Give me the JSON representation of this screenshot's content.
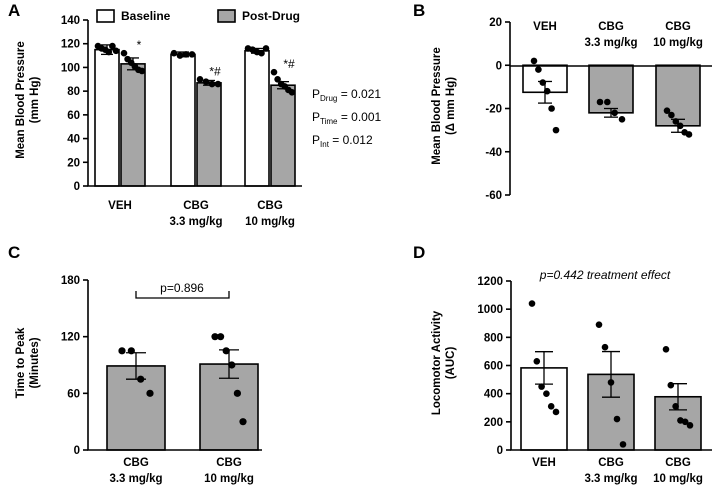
{
  "colors": {
    "baseline": "#ffffff",
    "post_drug": "#a6a6a6",
    "ink": "#000000"
  },
  "chart_data": [
    {
      "panel": "A",
      "type": "bar",
      "ylabel": "Mean Blood Pressure",
      "ylabel_unit": "(mm Hg)",
      "ylim": [
        0,
        140
      ],
      "yticks": [
        "0",
        "20",
        "40",
        "60",
        "80",
        "100",
        "120",
        "140"
      ],
      "legend": {
        "placement": "top",
        "baseline": "Baseline",
        "post_drug": "Post-Drug"
      },
      "groups": [
        {
          "label": "VEH",
          "sublabel": "",
          "baseline_mean": 115,
          "baseline_sem": 4,
          "baseline_points": [
            118,
            116,
            115,
            113,
            118,
            114
          ],
          "post_mean": 103,
          "post_sem": 5,
          "post_points": [
            112,
            107,
            104,
            101,
            98,
            97
          ],
          "marker": "*"
        },
        {
          "label": "CBG",
          "sublabel": "3.3 mg/kg",
          "baseline_mean": 111,
          "baseline_sem": 2,
          "baseline_points": [
            112,
            110,
            111,
            111
          ],
          "post_mean": 87,
          "post_sem": 2,
          "post_points": [
            90,
            88,
            86,
            86
          ],
          "marker": "*#"
        },
        {
          "label": "CBG",
          "sublabel": "10 mg/kg",
          "baseline_mean": 114,
          "baseline_sem": 2,
          "baseline_points": [
            116,
            115,
            113,
            112,
            116
          ],
          "post_mean": 85,
          "post_sem": 3,
          "post_points": [
            96,
            90,
            86,
            84,
            81,
            79
          ],
          "marker": "*#"
        }
      ],
      "stats": [
        {
          "p": "P",
          "sub": "Drug",
          "rest": " = 0.021"
        },
        {
          "p": "P",
          "sub": "Time",
          "rest": " = 0.001"
        },
        {
          "p": "P",
          "sub": "Int",
          "rest": " = 0.012"
        }
      ]
    },
    {
      "panel": "B",
      "type": "bar",
      "ylabel": "Mean Blood Pressure",
      "ylabel_unit": "(Δ mm Hg)",
      "ylim": [
        -60,
        20
      ],
      "yticks": [
        "20",
        "0",
        "-20",
        "-40",
        "-60"
      ],
      "categories": [
        {
          "label": "VEH",
          "sublabel": ""
        },
        {
          "label": "CBG",
          "sublabel": "3.3 mg/kg"
        },
        {
          "label": "CBG",
          "sublabel": "10 mg/kg"
        }
      ],
      "values": [
        -12.5,
        -22,
        -28
      ],
      "sem": [
        5,
        2,
        3
      ],
      "points": [
        [
          2,
          -2,
          -8,
          -12,
          -20,
          -30
        ],
        [
          -17,
          -17,
          -22,
          -25
        ],
        [
          -21,
          -23,
          -26,
          -28,
          -31,
          -32
        ]
      ]
    },
    {
      "panel": "C",
      "type": "bar",
      "ylabel": "Time to Peak",
      "ylabel_unit": "(Minutes)",
      "ylim": [
        0,
        180
      ],
      "yticks": [
        "0",
        "60",
        "120",
        "180"
      ],
      "categories": [
        {
          "label": "CBG",
          "sublabel": "3.3 mg/kg"
        },
        {
          "label": "CBG",
          "sublabel": "10 mg/kg"
        }
      ],
      "values": [
        89,
        91
      ],
      "sem": [
        14,
        15
      ],
      "points": [
        [
          105,
          105,
          75,
          60
        ],
        [
          120,
          120,
          105,
          90,
          60,
          30
        ]
      ],
      "annotation": "p=0.896"
    },
    {
      "panel": "D",
      "type": "bar",
      "ylabel": "Locomotor Activity",
      "ylabel_unit": "(AUC)",
      "ylim": [
        0,
        1200
      ],
      "yticks": [
        "0",
        "200",
        "400",
        "600",
        "800",
        "1000",
        "1200"
      ],
      "categories": [
        {
          "label": "VEH",
          "sublabel": ""
        },
        {
          "label": "CBG",
          "sublabel": "3.3 mg/kg"
        },
        {
          "label": "CBG",
          "sublabel": "10 mg/kg"
        }
      ],
      "values": [
        583,
        537,
        378
      ],
      "sem": [
        115,
        162,
        93
      ],
      "points": [
        [
          1040,
          630,
          450,
          400,
          310,
          270
        ],
        [
          890,
          730,
          480,
          220,
          40
        ],
        [
          715,
          460,
          310,
          210,
          200,
          175
        ]
      ],
      "colors": [
        "#ffffff",
        "#a6a6a6",
        "#a6a6a6"
      ],
      "annotation": "p=0.442 treatment effect"
    }
  ]
}
